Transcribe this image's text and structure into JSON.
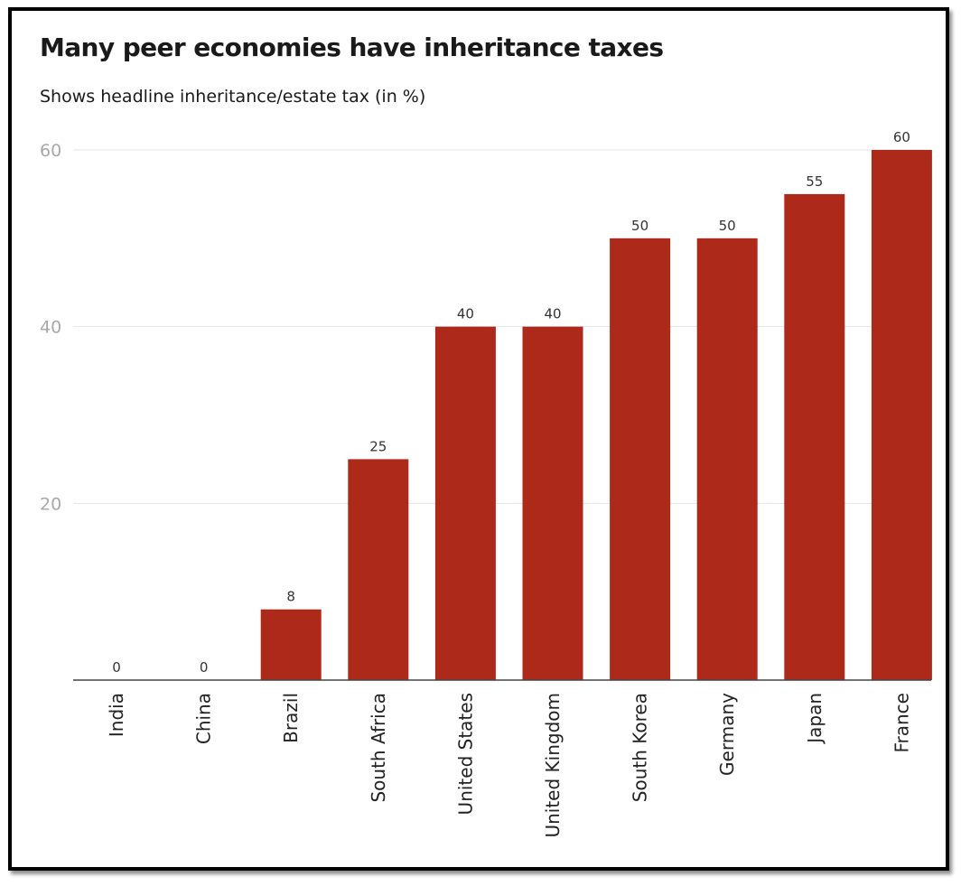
{
  "colors": {
    "bar": "#ad2a1a",
    "grid": "#e4e4e4",
    "axis": "#444444",
    "text": "#1a1a1a"
  },
  "chart_data": {
    "type": "bar",
    "title": "Many peer economies have inheritance taxes",
    "subtitle": "Shows headline inheritance/estate tax (in %)",
    "xlabel": "",
    "ylabel": "",
    "categories": [
      "India",
      "China",
      "Brazil",
      "South Africa",
      "United States",
      "United Kingdom",
      "South Korea",
      "Germany",
      "Japan",
      "France"
    ],
    "values": [
      0,
      0,
      8,
      25,
      40,
      40,
      50,
      50,
      55,
      60
    ],
    "ylim": [
      0,
      60
    ],
    "yticks": [
      20,
      40,
      60
    ],
    "grid": true,
    "legend": "none"
  }
}
